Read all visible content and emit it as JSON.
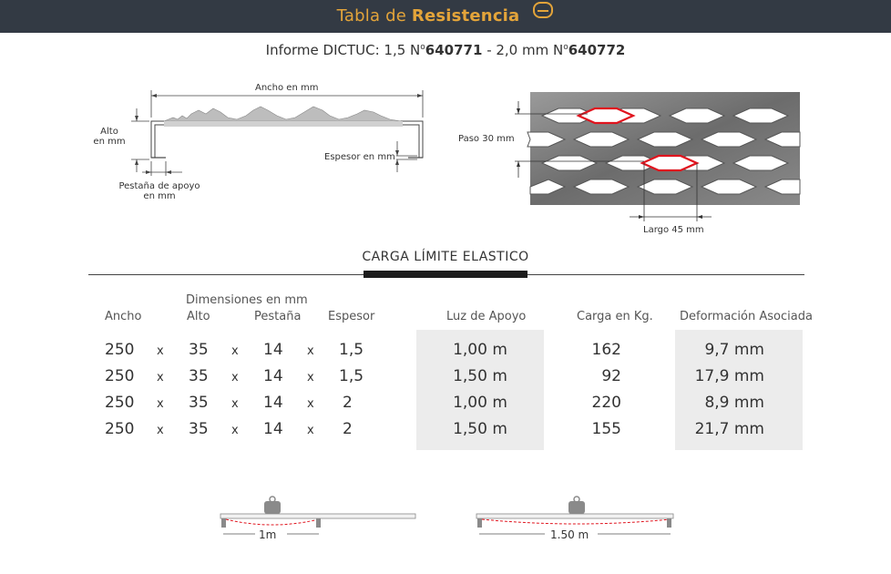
{
  "header": {
    "title_light": "Tabla de ",
    "title_bold": "Resistencia",
    "icon": "profile-icon",
    "accent_color": "#e3a43a",
    "bar_color": "#333a44"
  },
  "subtitle": {
    "prefix": "Informe DICTUC: 1,5 N",
    "ordinal1": "o",
    "num1": "640771",
    "middle": " -  2,0 mm N",
    "ordinal2": "o",
    "num2": "640772"
  },
  "profile_diagram": {
    "ancho": "Ancho en mm",
    "alto": "Alto\nen mm",
    "espesor": "Espesor en mm",
    "pestana": "Pestaña de apoyo\nen mm"
  },
  "mesh_diagram": {
    "paso": "Paso 30 mm",
    "largo": "Largo 45 mm"
  },
  "section": {
    "title": "CARGA LÍMITE ELASTICO"
  },
  "table": {
    "dimensions_label": "Dimensiones en mm",
    "headers": {
      "ancho": "Ancho",
      "alto": "Alto",
      "pestana": "Pestaña",
      "espesor": "Espesor",
      "luz": "Luz de Apoyo",
      "carga": "Carga en Kg.",
      "deformacion": "Deformación Asociada"
    },
    "separator": "x",
    "rows": [
      {
        "ancho": "250",
        "alto": "35",
        "pestana": "14",
        "espesor": "1,5",
        "luz": "1,00 m",
        "carga": "162",
        "deformacion": "9,7 mm"
      },
      {
        "ancho": "250",
        "alto": "35",
        "pestana": "14",
        "espesor": "1,5",
        "luz": "1,50 m",
        "carga": "92",
        "deformacion": "17,9 mm"
      },
      {
        "ancho": "250",
        "alto": "35",
        "pestana": "14",
        "espesor": "2",
        "luz": "1,00 m",
        "carga": "220",
        "deformacion": "8,9 mm"
      },
      {
        "ancho": "250",
        "alto": "35",
        "pestana": "14",
        "espesor": "2",
        "luz": "1,50 m",
        "carga": "155",
        "deformacion": "21,7 mm"
      }
    ]
  },
  "spans": {
    "left_label": "1m",
    "right_label": "1.50 m"
  }
}
